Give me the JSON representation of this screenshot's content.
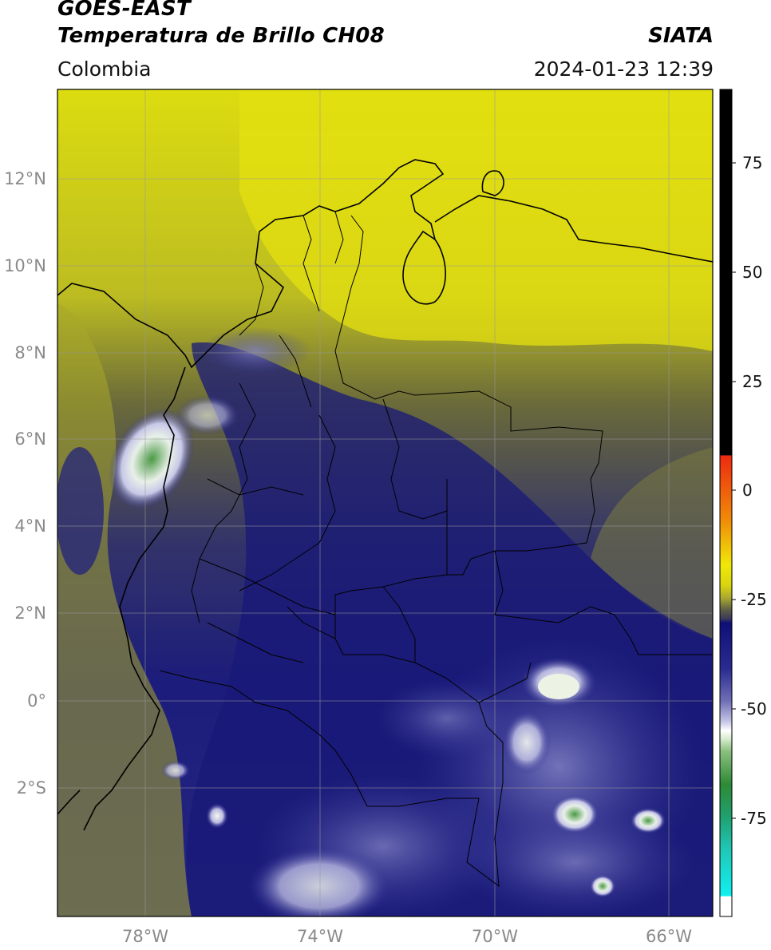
{
  "header": {
    "satellite": "GOES-EAST",
    "product": "Temperatura de Brillo CH08",
    "agency": "SIATA",
    "region": "Colombia",
    "timestamp": "2024-01-23 12:39"
  },
  "map": {
    "lon_range": [
      -80,
      -65
    ],
    "lat_range": [
      -5,
      14
    ],
    "lat_ticks": [
      "12°N",
      "10°N",
      "8°N",
      "6°N",
      "4°N",
      "2°N",
      "0°",
      "2°S"
    ],
    "lon_ticks": [
      "78°W",
      "74°W",
      "70°W",
      "66°W"
    ],
    "grid": true
  },
  "colorbar": {
    "range": [
      -95,
      90
    ],
    "ticks": [
      "75",
      "50",
      "25",
      "0",
      "-25",
      "-50",
      "-75"
    ],
    "colors": {
      "top": "#000000",
      "warm": "#e83818",
      "yellow": "#e6e00c",
      "olive": "#6b6a36",
      "navy": "#141470",
      "lavender": "#8888c8",
      "white": "#ffffff",
      "green": "#2a8a3a",
      "teal": "#1fbfa0",
      "cyan": "#10e8e8"
    }
  }
}
